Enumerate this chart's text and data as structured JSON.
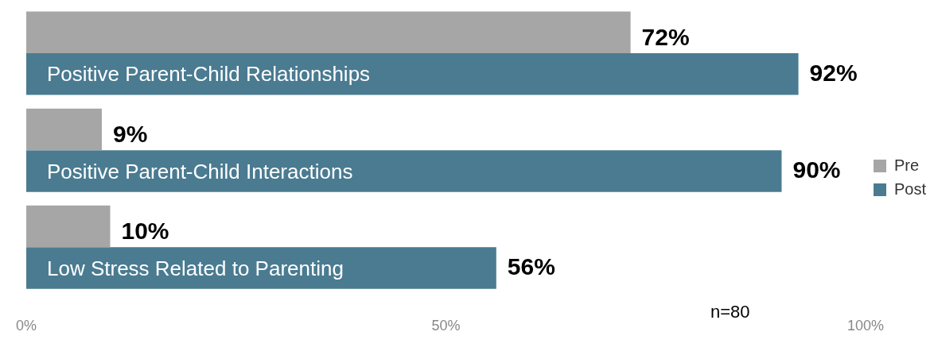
{
  "chart_data": {
    "type": "bar",
    "orientation": "horizontal",
    "categories": [
      "Positive Parent-Child Relationships",
      "Positive Parent-Child Interactions",
      "Low Stress Related to Parenting"
    ],
    "series": [
      {
        "name": "Pre",
        "color": "#a6a6a6",
        "values": [
          72,
          9,
          10
        ],
        "value_labels": [
          "72%",
          "9%",
          "10%"
        ]
      },
      {
        "name": "Post",
        "color": "#4a7b91",
        "values": [
          92,
          90,
          56
        ],
        "value_labels": [
          "92%",
          "90%",
          "56%"
        ]
      }
    ],
    "xlim": [
      0,
      100
    ],
    "xticks": [
      {
        "value": 0,
        "label": "0%"
      },
      {
        "value": 50,
        "label": "50%"
      },
      {
        "value": 100,
        "label": "100%"
      }
    ],
    "grid": false,
    "legend": "right",
    "annotations": [
      "n=80"
    ]
  }
}
